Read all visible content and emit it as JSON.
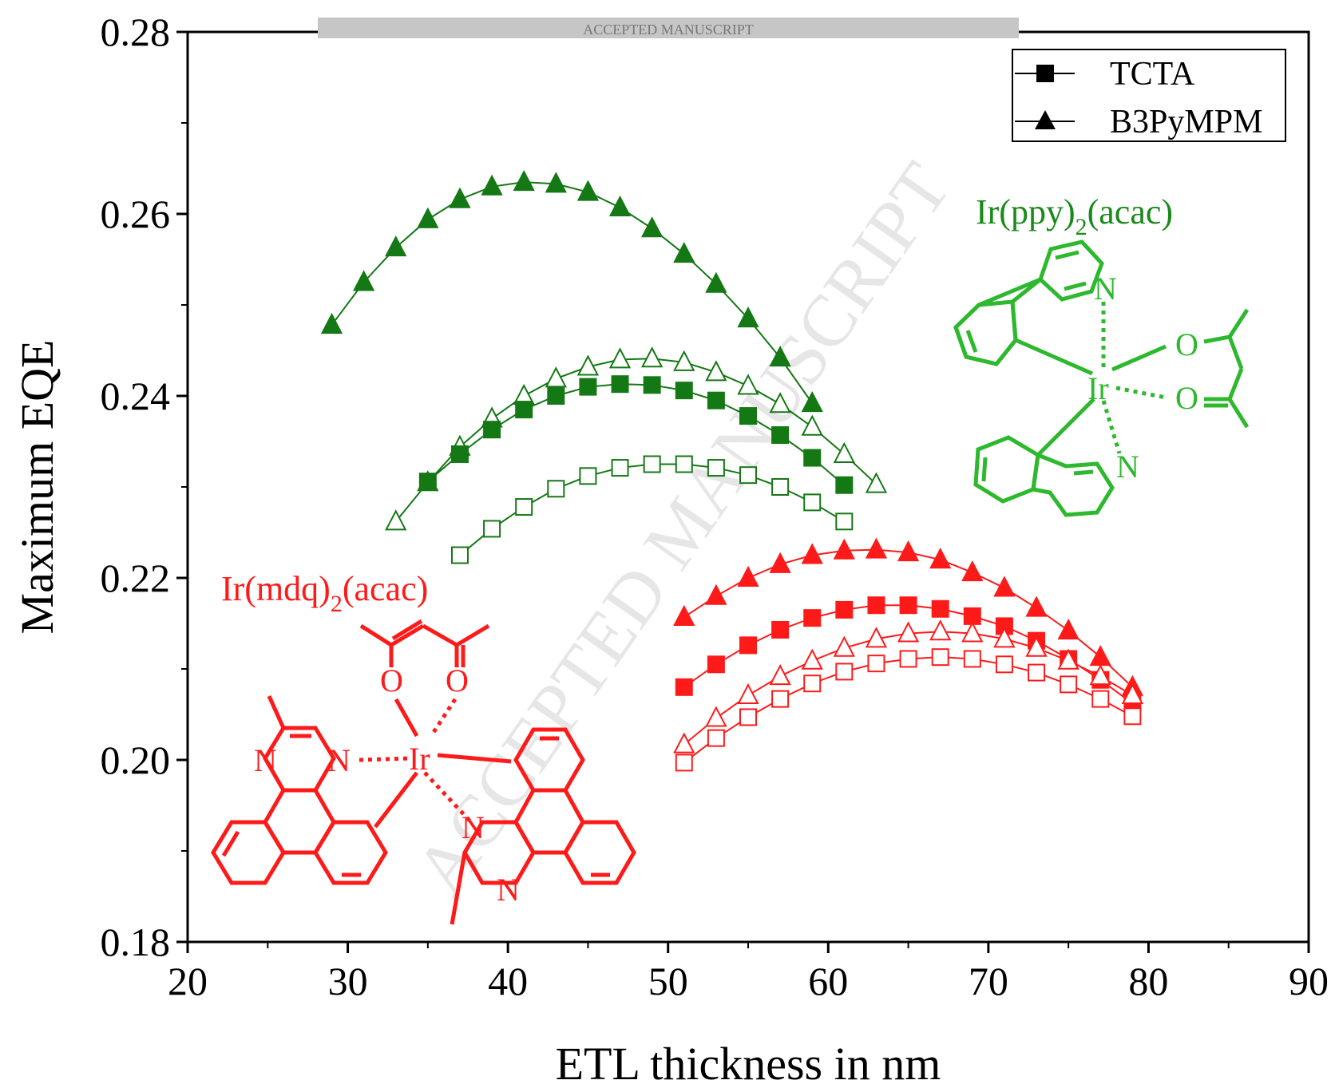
{
  "watermark": {
    "diagonal_text": "ACCEPTED MANUSCRIPT",
    "banner_text": "ACCEPTED MANUSCRIPT"
  },
  "chart_data": {
    "type": "line",
    "title": "",
    "xlabel": "ETL thickness in nm",
    "ylabel": "Maximum EQE",
    "xlim": [
      20,
      90
    ],
    "ylim": [
      0.18,
      0.28
    ],
    "x_ticks": [
      "20",
      "30",
      "40",
      "50",
      "60",
      "70",
      "80",
      "90"
    ],
    "y_ticks": [
      "0.18",
      "0.20",
      "0.22",
      "0.24",
      "0.26",
      "0.28"
    ],
    "grid": false,
    "legend": {
      "position": "top-right",
      "entries": [
        {
          "label": "TCTA",
          "marker": "square"
        },
        {
          "label": "B3PyMPM",
          "marker": "triangle"
        }
      ]
    },
    "annotations": [
      {
        "text": "Ir(ppy)",
        "sub": "2",
        "suffix": "(acac)",
        "color": "#1a8a1a"
      },
      {
        "text": "Ir(mdq)",
        "sub": "2",
        "suffix": "(acac)",
        "color": "#ff1a1a"
      }
    ],
    "series": [
      {
        "color": "#147814",
        "marker": "triangle",
        "filled": true,
        "x": [
          29,
          31,
          33,
          35,
          37,
          39,
          41,
          43,
          45,
          47,
          49,
          51,
          53,
          55,
          57,
          59
        ],
        "y": [
          0.2478,
          0.2525,
          0.2563,
          0.2594,
          0.2616,
          0.263,
          0.2635,
          0.2633,
          0.2624,
          0.2607,
          0.2584,
          0.2556,
          0.2523,
          0.2485,
          0.2442,
          0.2392
        ]
      },
      {
        "color": "#147814",
        "marker": "triangle",
        "filled": false,
        "x": [
          33,
          35,
          37,
          39,
          41,
          43,
          45,
          47,
          49,
          51,
          53,
          55,
          57,
          59,
          61,
          63
        ],
        "y": [
          0.2262,
          0.2305,
          0.2344,
          0.2375,
          0.24,
          0.2419,
          0.2432,
          0.244,
          0.2441,
          0.2437,
          0.2426,
          0.2411,
          0.2391,
          0.2366,
          0.2336,
          0.2303
        ]
      },
      {
        "color": "#147814",
        "marker": "square",
        "filled": true,
        "x": [
          35,
          37,
          39,
          41,
          43,
          45,
          47,
          49,
          51,
          53,
          55,
          57,
          59,
          61
        ],
        "y": [
          0.2306,
          0.2336,
          0.2363,
          0.2385,
          0.24,
          0.241,
          0.2413,
          0.2412,
          0.2406,
          0.2395,
          0.2378,
          0.2357,
          0.2332,
          0.2302
        ]
      },
      {
        "color": "#147814",
        "marker": "square",
        "filled": false,
        "x": [
          37,
          39,
          41,
          43,
          45,
          47,
          49,
          51,
          53,
          55,
          57,
          59,
          61
        ],
        "y": [
          0.2225,
          0.2254,
          0.2278,
          0.2298,
          0.2312,
          0.2321,
          0.2325,
          0.2325,
          0.2321,
          0.2313,
          0.23,
          0.2283,
          0.2262
        ]
      },
      {
        "color": "#ff1a1a",
        "marker": "triangle",
        "filled": true,
        "x": [
          51,
          53,
          55,
          57,
          59,
          61,
          63,
          65,
          67,
          69,
          71,
          73,
          75,
          77,
          79
        ],
        "y": [
          0.2157,
          0.218,
          0.22,
          0.2215,
          0.2225,
          0.223,
          0.2231,
          0.2228,
          0.222,
          0.2206,
          0.2189,
          0.2167,
          0.2142,
          0.2113,
          0.208
        ]
      },
      {
        "color": "#ff1a1a",
        "marker": "square",
        "filled": true,
        "x": [
          51,
          53,
          55,
          57,
          59,
          61,
          63,
          65,
          67,
          69,
          71,
          73,
          75,
          77,
          79
        ],
        "y": [
          0.208,
          0.2105,
          0.2126,
          0.2143,
          0.2156,
          0.2165,
          0.217,
          0.217,
          0.2166,
          0.2158,
          0.2147,
          0.2131,
          0.2111,
          0.2088,
          0.2062
        ]
      },
      {
        "color": "#ff1a1a",
        "marker": "triangle",
        "filled": false,
        "x": [
          51,
          53,
          55,
          57,
          59,
          61,
          63,
          65,
          67,
          69,
          71,
          73,
          75,
          77,
          79
        ],
        "y": [
          0.2017,
          0.2046,
          0.2071,
          0.2092,
          0.2109,
          0.2123,
          0.2133,
          0.2139,
          0.2141,
          0.2139,
          0.2133,
          0.2123,
          0.2109,
          0.2092,
          0.2071
        ]
      },
      {
        "color": "#ff1a1a",
        "marker": "square",
        "filled": false,
        "x": [
          51,
          53,
          55,
          57,
          59,
          61,
          63,
          65,
          67,
          69,
          71,
          73,
          75,
          77,
          79
        ],
        "y": [
          0.1997,
          0.2024,
          0.2047,
          0.2067,
          0.2084,
          0.2097,
          0.2106,
          0.2111,
          0.2113,
          0.2111,
          0.2105,
          0.2096,
          0.2083,
          0.2067,
          0.2048
        ]
      }
    ]
  },
  "structures": {
    "green": {
      "color": "#2db82d",
      "center_atom": "Ir",
      "atoms": [
        "N",
        "O",
        "O",
        "N"
      ]
    },
    "red": {
      "color": "#ff1a1a",
      "center_atom": "Ir",
      "atoms": [
        "O",
        "O",
        "N",
        "N",
        "N",
        "N"
      ]
    }
  }
}
